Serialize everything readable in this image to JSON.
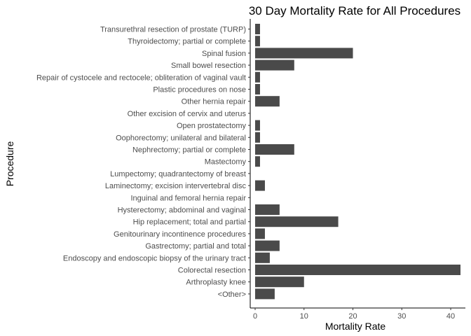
{
  "chart_data": {
    "type": "bar",
    "orientation": "horizontal",
    "title": "30 Day Mortality Rate for All Procedures",
    "xlabel": "Mortality Rate",
    "ylabel": "Procedure",
    "xlim": [
      0,
      42
    ],
    "xticks": [
      0,
      10,
      20,
      30,
      40
    ],
    "bar_color": "#4a4a4a",
    "grid": false,
    "categories": [
      "Transurethral resection of prostate (TURP)",
      "Thyroidectomy; partial or complete",
      "Spinal fusion",
      "Small bowel resection",
      "Repair of cystocele and rectocele; obliteration of vaginal vault",
      "Plastic procedures on nose",
      "Other hernia repair",
      "Other excision of cervix and uterus",
      "Open prostatectomy",
      "Oophorectomy; unilateral and bilateral",
      "Nephrectomy; partial or complete",
      "Mastectomy",
      "Lumpectomy; quadrantectomy of breast",
      "Laminectomy; excision intervertebral disc",
      "Inguinal and femoral hernia repair",
      "Hysterectomy; abdominal and vaginal",
      "Hip replacement; total and partial",
      "Genitourinary incontinence procedures",
      "Gastrectomy; partial and total",
      "Endoscopy and endoscopic biopsy of the urinary tract",
      "Colorectal resection",
      "Arthroplasty knee",
      "<Other>"
    ],
    "values": [
      1,
      1,
      20,
      8,
      1,
      1,
      5,
      0,
      1,
      1,
      8,
      1,
      0,
      2,
      0,
      5,
      17,
      2,
      5,
      3,
      42,
      10,
      4
    ]
  }
}
